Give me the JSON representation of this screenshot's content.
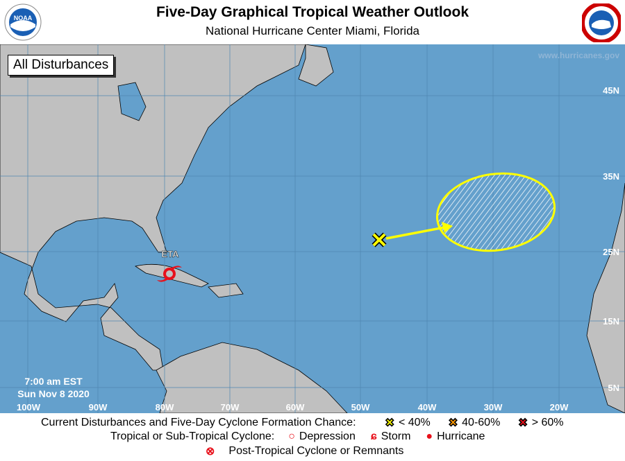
{
  "header": {
    "title": "Five-Day Graphical Tropical Weather Outlook",
    "subtitle": "National Hurricane Center  Miami, Florida",
    "left_logo": "NOAA",
    "right_logo": "NATIONAL WEATHER SERVICE"
  },
  "map": {
    "filter_label": "All Disturbances",
    "website": "www.hurricanes.gov",
    "time": "7:00 am EST",
    "date": "Sun Nov 8 2020",
    "lon_labels": [
      "100W",
      "90W",
      "80W",
      "70W",
      "60W",
      "50W",
      "40W",
      "30W",
      "20W"
    ],
    "lat_labels": [
      "45N",
      "35N",
      "25N",
      "15N",
      "5N"
    ],
    "storms": [
      {
        "name": "ETA",
        "type": "hurricane",
        "color": "#e8101a"
      }
    ],
    "disturbances": [
      {
        "chance": "< 40%",
        "color": "#ffff00",
        "area_hatched": true
      }
    ],
    "colors": {
      "ocean": "#64a0cc",
      "land": "#c0c0c0",
      "yellow": "#ffff00"
    }
  },
  "legend": {
    "row1_label": "Current Disturbances and Five-Day Cyclone Formation Chance:",
    "low": "< 40%",
    "medium": "40-60%",
    "high": "> 60%",
    "low_color": "#ffff00",
    "medium_color": "#ff9900",
    "high_color": "#e8101a",
    "row2_label": "Tropical or Sub-Tropical Cyclone:",
    "depression": "Depression",
    "storm": "Storm",
    "hurricane": "Hurricane",
    "row3_label": "Post-Tropical Cyclone or Remnants"
  }
}
